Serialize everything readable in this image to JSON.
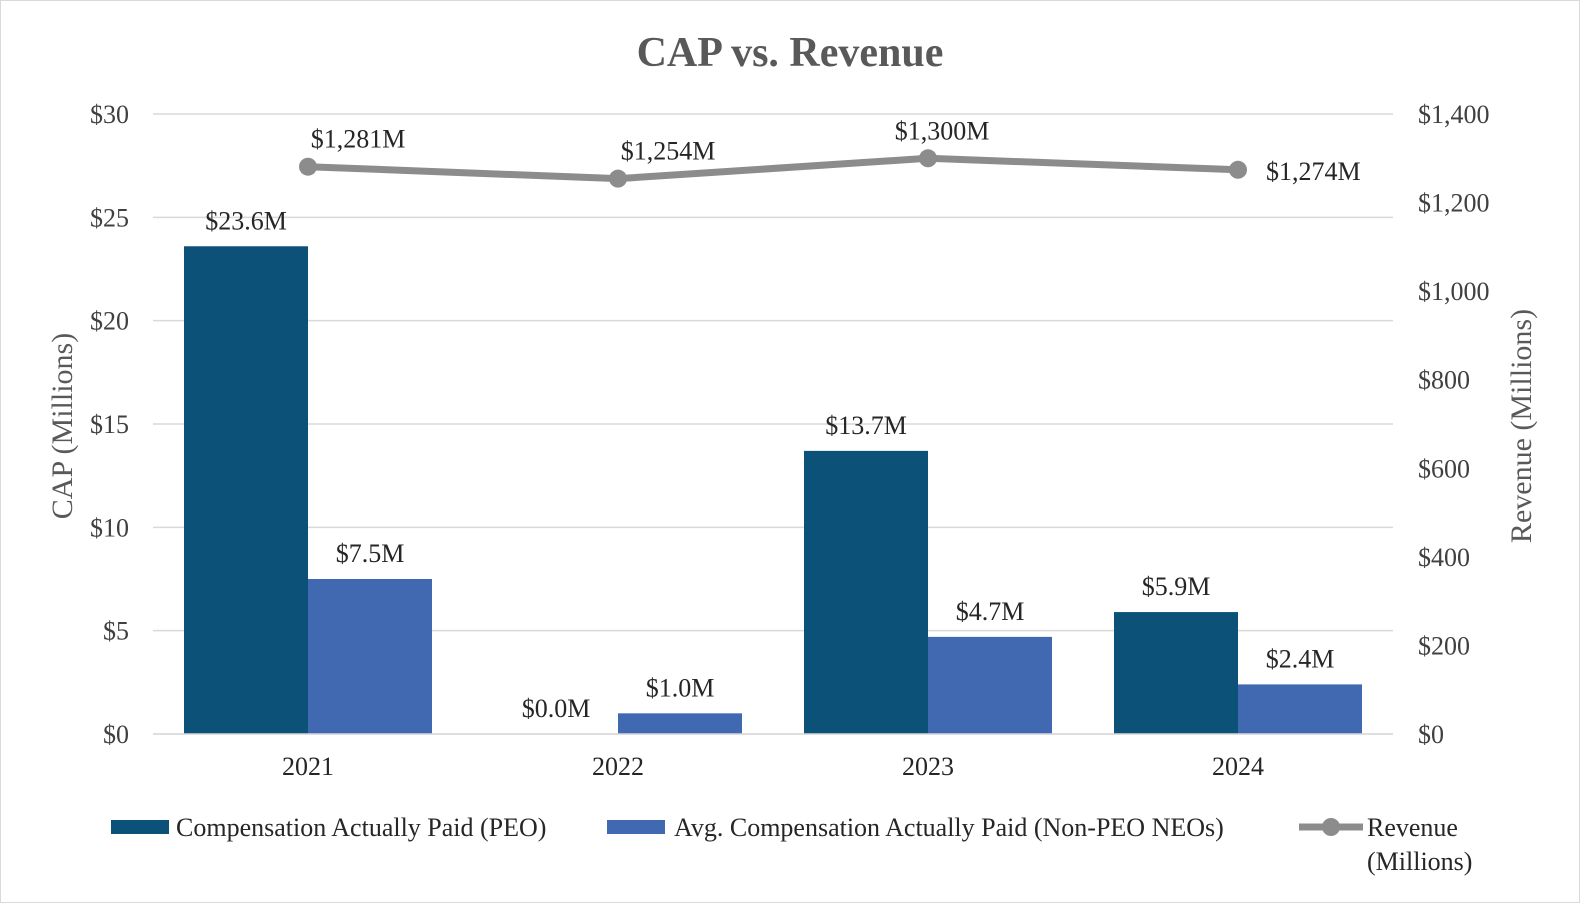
{
  "chart_data": {
    "type": "bar",
    "title": "CAP vs. Revenue",
    "categories": [
      "2021",
      "2022",
      "2023",
      "2024"
    ],
    "ylabel": "CAP (Millions)",
    "y2label": "Revenue (Millions)",
    "ylim": [
      0,
      30
    ],
    "y2lim": [
      0,
      1400
    ],
    "yticks": [
      {
        "value": 0,
        "label": "$0"
      },
      {
        "value": 5,
        "label": "$5"
      },
      {
        "value": 10,
        "label": "$10"
      },
      {
        "value": 15,
        "label": "$15"
      },
      {
        "value": 20,
        "label": "$20"
      },
      {
        "value": 25,
        "label": "$25"
      },
      {
        "value": 30,
        "label": "$30"
      }
    ],
    "y2ticks": [
      {
        "value": 0,
        "label": "$0"
      },
      {
        "value": 200,
        "label": "$200"
      },
      {
        "value": 400,
        "label": "$400"
      },
      {
        "value": 600,
        "label": "$600"
      },
      {
        "value": 800,
        "label": "$800"
      },
      {
        "value": 1000,
        "label": "$1,000"
      },
      {
        "value": 1200,
        "label": "$1,200"
      },
      {
        "value": 1400,
        "label": "$1,400"
      }
    ],
    "grid": true,
    "legend_position": "bottom",
    "series": [
      {
        "name": "Compensation Actually Paid (PEO)",
        "type": "bar",
        "axis": "left",
        "color": "#0c5178",
        "values": [
          23.6,
          0.0,
          13.7,
          5.9
        ],
        "labels": [
          "$23.6M",
          "$0.0M",
          "$13.7M",
          "$5.9M"
        ]
      },
      {
        "name": "Avg. Compensation Actually Paid (Non-PEO NEOs)",
        "type": "bar",
        "axis": "left",
        "color": "#4169b2",
        "values": [
          7.5,
          1.0,
          4.7,
          2.4
        ],
        "labels": [
          "$7.5M",
          "$1.0M",
          "$4.7M",
          "$2.4M"
        ]
      },
      {
        "name": "Revenue (Millions)",
        "legend_lines": [
          "Revenue",
          "(Millions)"
        ],
        "type": "line",
        "axis": "right",
        "color": "#8c8c8c",
        "values": [
          1281,
          1254,
          1300,
          1274
        ],
        "labels": [
          "$1,281M",
          "$1,254M",
          "$1,300M",
          "$1,274M"
        ]
      }
    ],
    "colors": {
      "text": "#262626",
      "title": "#595959",
      "axis_title": "#595959",
      "grid": "#d9d9d9"
    }
  }
}
